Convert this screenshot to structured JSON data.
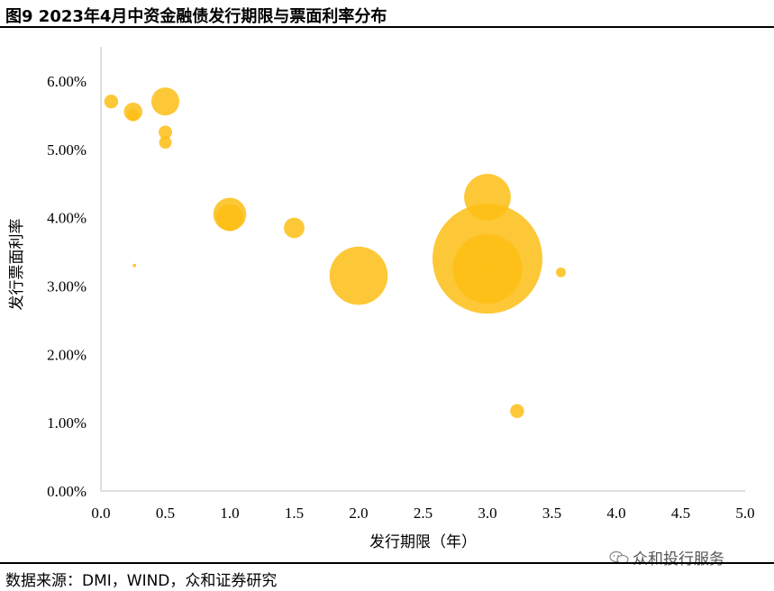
{
  "header": {
    "title": "图9 2023年4月中资金融债发行期限与票面利率分布"
  },
  "footer": {
    "source": "数据来源：DMI，WIND，众和证券研究",
    "watermark": "众和投行服务"
  },
  "colors": {
    "bubble": "#FDBE14",
    "axis": "#bfbfbf"
  },
  "chart_data": {
    "type": "scatter",
    "variant": "bubble",
    "title": "图9 2023年4月中资金融债发行期限与票面利率分布",
    "xlabel": "发行期限（年）",
    "ylabel": "发行票面利率",
    "xlim": [
      0,
      5.0
    ],
    "ylim": [
      0,
      6.5
    ],
    "xticks": [
      "0.0",
      "0.5",
      "1.0",
      "1.5",
      "2.0",
      "2.5",
      "3.0",
      "3.5",
      "4.0",
      "4.5",
      "5.0"
    ],
    "yticks": [
      "0.00%",
      "1.00%",
      "2.00%",
      "3.00%",
      "4.00%",
      "5.00%",
      "6.00%"
    ],
    "grid": false,
    "legend": "none",
    "points": [
      {
        "x": 3.0,
        "y": 3.4,
        "size": 100
      },
      {
        "x": 3.0,
        "y": 3.25,
        "size": 40
      },
      {
        "x": 2.0,
        "y": 3.15,
        "size": 28
      },
      {
        "x": 3.0,
        "y": 4.3,
        "size": 18
      },
      {
        "x": 1.0,
        "y": 4.05,
        "size": 9
      },
      {
        "x": 1.0,
        "y": 4.0,
        "size": 6
      },
      {
        "x": 0.5,
        "y": 5.7,
        "size": 6.5
      },
      {
        "x": 1.5,
        "y": 3.85,
        "size": 3.5
      },
      {
        "x": 0.25,
        "y": 5.55,
        "size": 2.8
      },
      {
        "x": 0.25,
        "y": 5.5,
        "size": 1.2
      },
      {
        "x": 0.08,
        "y": 5.7,
        "size": 1.6
      },
      {
        "x": 0.5,
        "y": 5.25,
        "size": 1.5
      },
      {
        "x": 0.5,
        "y": 5.1,
        "size": 1.3
      },
      {
        "x": 3.23,
        "y": 1.17,
        "size": 1.6
      },
      {
        "x": 3.57,
        "y": 3.2,
        "size": 0.8
      },
      {
        "x": 3.0,
        "y": 3.25,
        "size": 0.3
      },
      {
        "x": 3.07,
        "y": 3.0,
        "size": 0.25
      },
      {
        "x": 0.26,
        "y": 3.3,
        "size": 0.1
      }
    ]
  }
}
